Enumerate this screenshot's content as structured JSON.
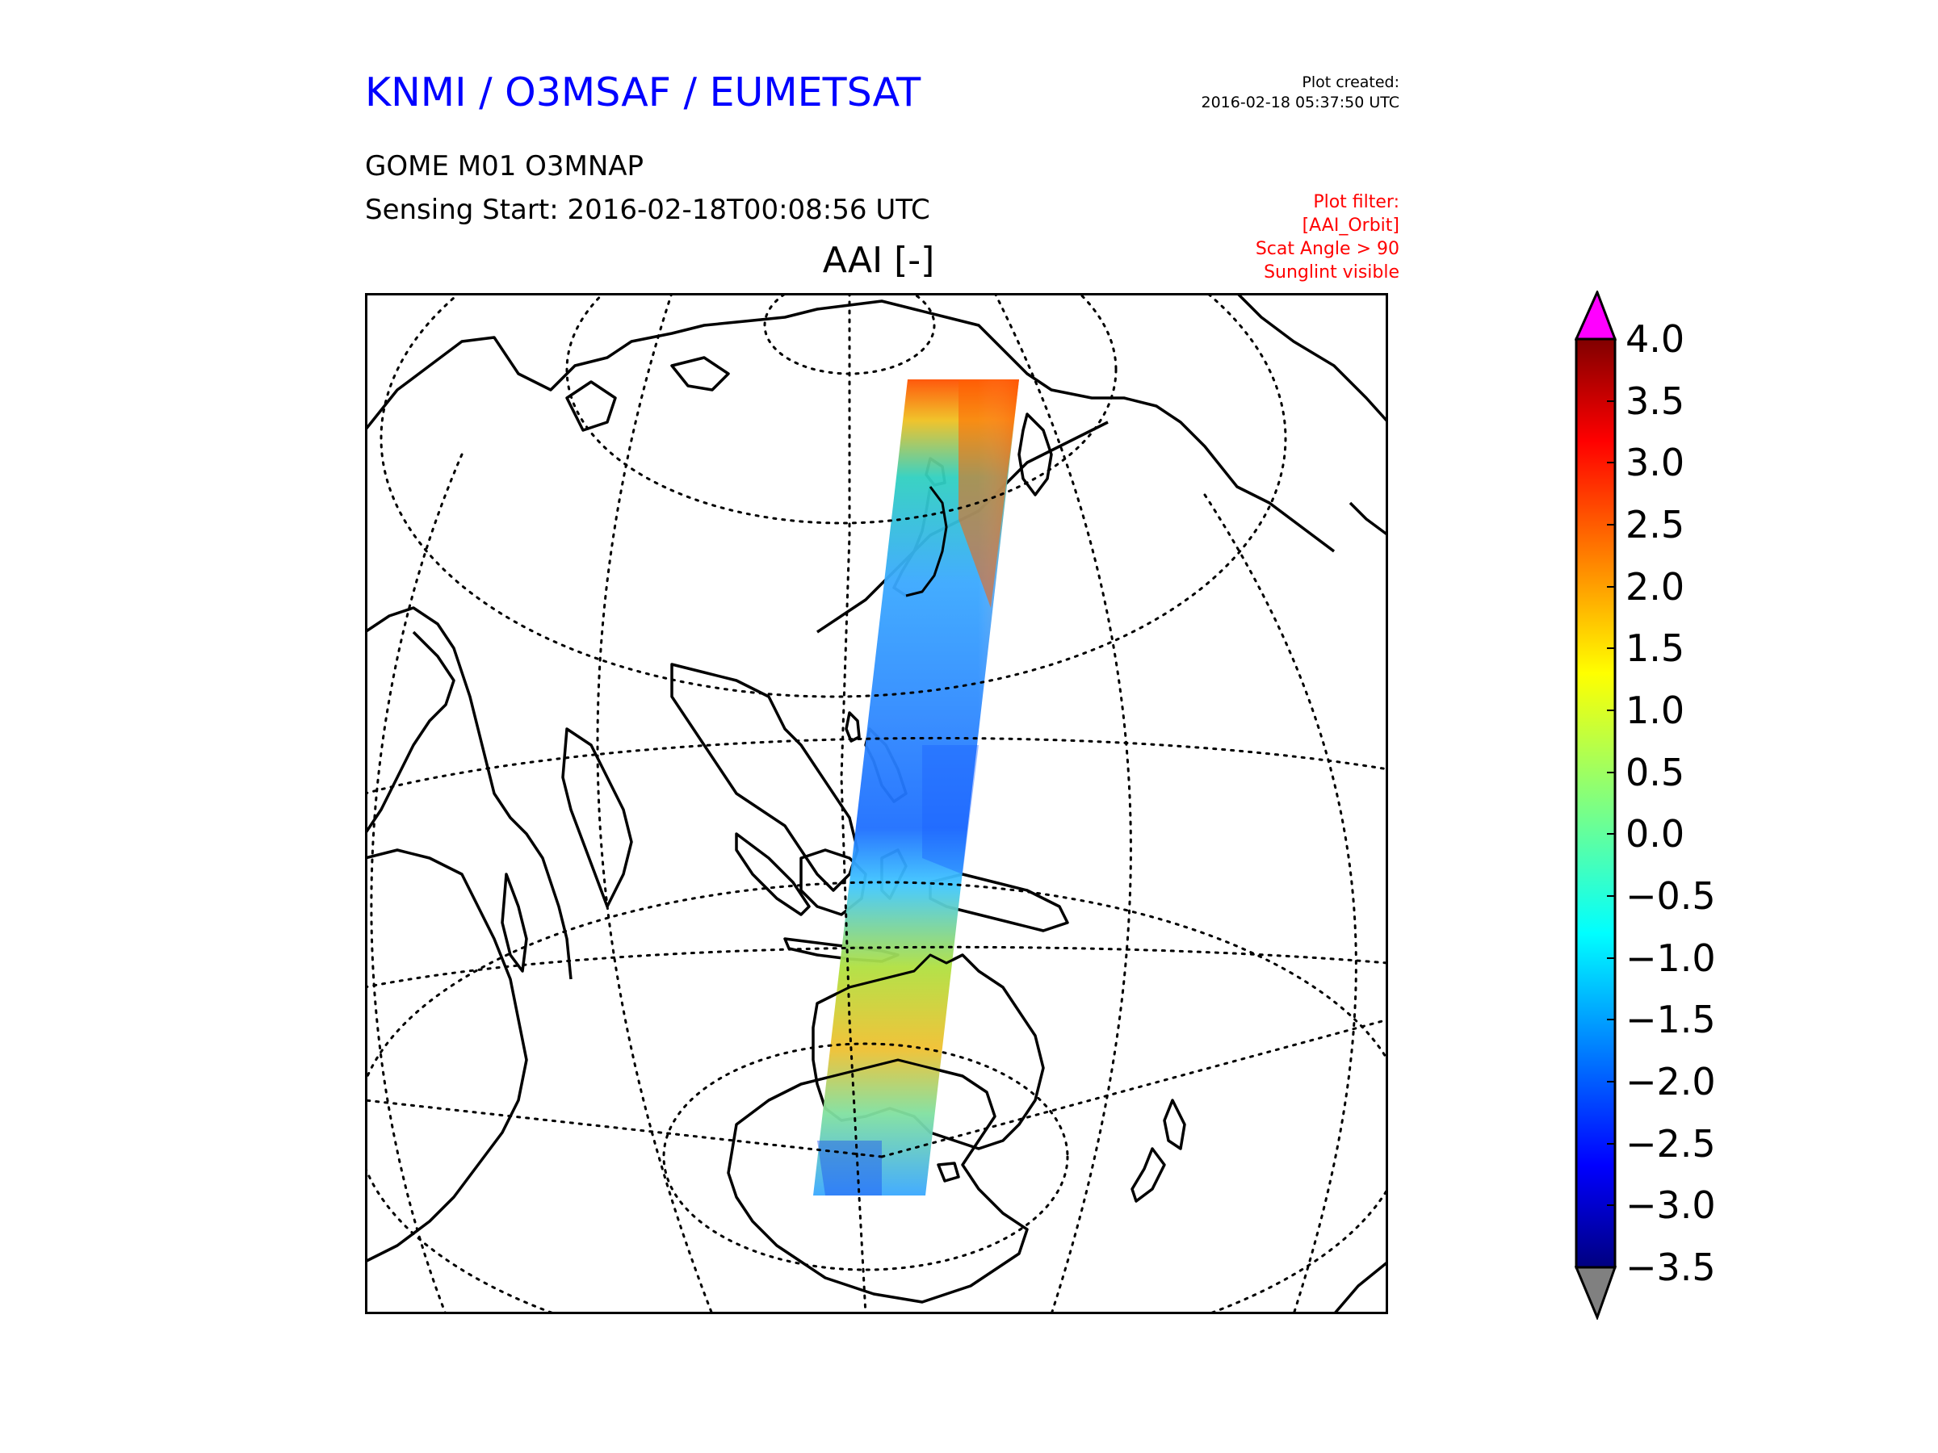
{
  "header": {
    "organization": "KNMI / O3MSAF / EUMETSAT",
    "created_label": "Plot created:",
    "created_time": "2016-02-18 05:37:50 UTC",
    "product": "GOME M01 O3MNAP",
    "sensing_start": "Sensing Start: 2016-02-18T00:08:56 UTC",
    "filter_lines": [
      "Plot filter:",
      "[AAI_Orbit]",
      "Scat Angle > 90",
      "Sunglint visible"
    ]
  },
  "map": {
    "title": "AAI [-]",
    "projection": "orthographic",
    "graticule": "dotted",
    "coastlines": true,
    "swath_description": "single GOME orbit swath"
  },
  "colorbar": {
    "colormap": "jet",
    "min": -3.5,
    "max": 4.0,
    "ticks": [
      "4.0",
      "3.5",
      "3.0",
      "2.5",
      "2.0",
      "1.5",
      "1.0",
      "0.5",
      "0.0",
      "−0.5",
      "−1.0",
      "−1.5",
      "−2.0",
      "−2.5",
      "−3.0",
      "−3.5"
    ],
    "over_color": "#ff00ff",
    "under_color": "#808080"
  }
}
